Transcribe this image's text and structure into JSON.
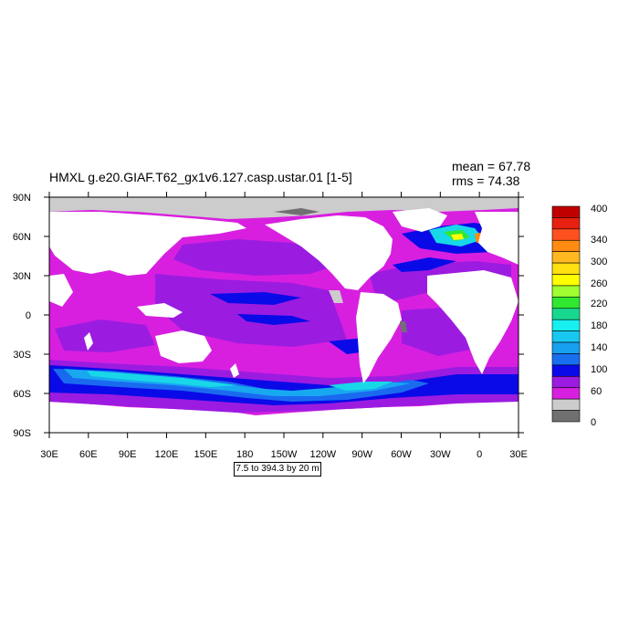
{
  "map": {
    "title": "HMXL g.e20.GIAF.T62_gx1v6.127.casp.ustar.01 [1-5]",
    "stats": {
      "mean_label": "mean =",
      "mean_value": "67.78",
      "rms_label": "rms =",
      "rms_value": "74.38"
    },
    "x_ticks": [
      "30E",
      "60E",
      "90E",
      "120E",
      "150E",
      "180",
      "150W",
      "120W",
      "90W",
      "60W",
      "30W",
      "0",
      "30E"
    ],
    "y_ticks": [
      "90N",
      "60N",
      "30N",
      "0",
      "30S",
      "60S",
      "90S"
    ],
    "contour_info": "7.5 to 394.3 by 20 m",
    "colors": {
      "land": "#ffffff",
      "magenta": "#d81fe0",
      "violet": "#9b1ce0",
      "blue": "#0a0ae8",
      "mid_blue": "#1a6af0",
      "sky_blue": "#18a8f0",
      "cyan": "#18d8e8",
      "gray_light": "#cccccc",
      "gray_dark": "#707070"
    }
  },
  "colorbar": {
    "labels": [
      "400",
      "340",
      "300",
      "260",
      "220",
      "180",
      "140",
      "100",
      "60",
      "0"
    ],
    "colors": [
      "#c00000",
      "#e82010",
      "#ff5020",
      "#ff8c10",
      "#ffb820",
      "#ffe010",
      "#ffff00",
      "#a0ff30",
      "#30e830",
      "#18d890",
      "#18f0f0",
      "#18c8f0",
      "#18a0f0",
      "#1870f0",
      "#0a0ae8",
      "#9b1ce0",
      "#d81fe0",
      "#cccccc",
      "#707070"
    ]
  }
}
